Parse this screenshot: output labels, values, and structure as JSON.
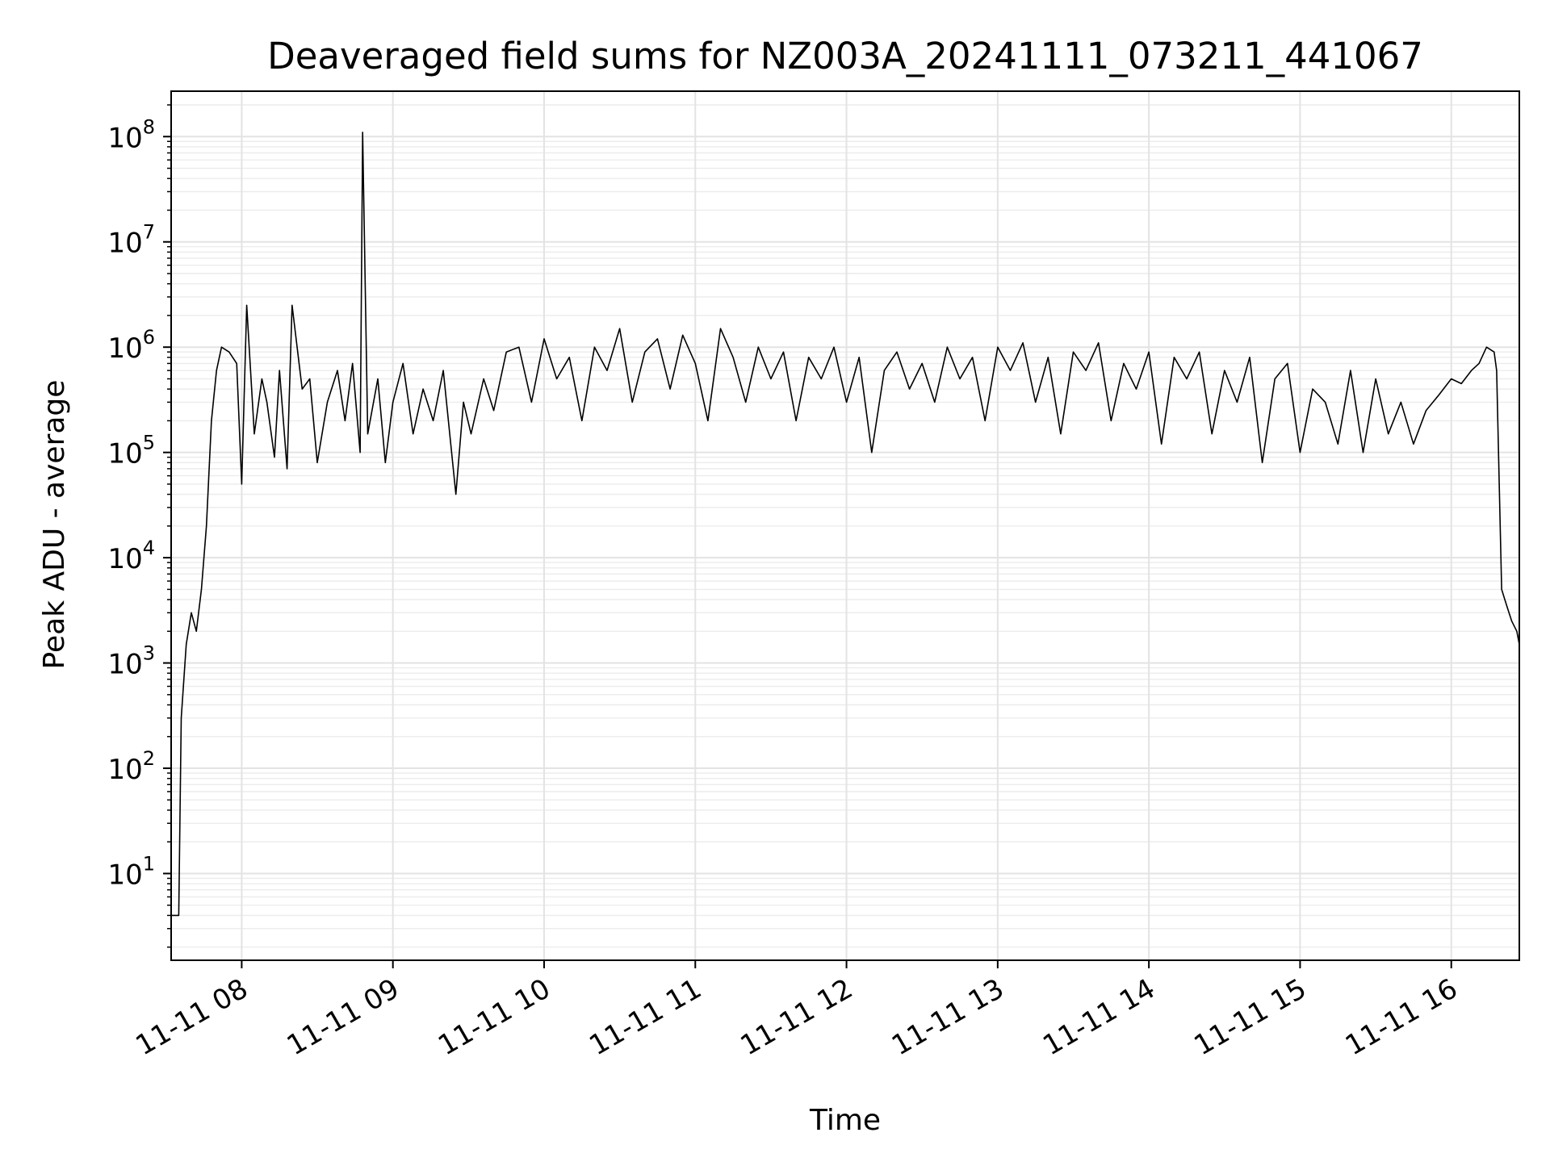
{
  "chart_data": {
    "type": "line",
    "title": "Deaveraged field sums for NZ003A_20241111_073211_441067",
    "xlabel": "Time",
    "ylabel": "Peak ADU - average",
    "yscale": "log",
    "xlim": [
      "11-11 07:32",
      "11-11 16:27"
    ],
    "ylim": [
      1.5,
      270000000.0
    ],
    "grid": true,
    "line_color": "#000000",
    "x_ticks": [
      "11-11 08",
      "11-11 09",
      "11-11 10",
      "11-11 11",
      "11-11 12",
      "11-11 13",
      "11-11 14",
      "11-11 15",
      "11-11 16"
    ],
    "y_ticks": [
      {
        "base": "10",
        "exp": "1",
        "value": 10
      },
      {
        "base": "10",
        "exp": "2",
        "value": 100
      },
      {
        "base": "10",
        "exp": "3",
        "value": 1000
      },
      {
        "base": "10",
        "exp": "4",
        "value": 10000
      },
      {
        "base": "10",
        "exp": "5",
        "value": 100000
      },
      {
        "base": "10",
        "exp": "6",
        "value": 1000000
      },
      {
        "base": "10",
        "exp": "7",
        "value": 10000000
      },
      {
        "base": "10",
        "exp": "8",
        "value": 100000000
      }
    ],
    "series": [
      {
        "x": [
          "11-11 07:32",
          "11-11 07:34",
          "11-11 07:35",
          "11-11 07:36",
          "11-11 07:38",
          "11-11 07:40",
          "11-11 07:42",
          "11-11 07:44",
          "11-11 07:46",
          "11-11 07:48",
          "11-11 07:50",
          "11-11 07:52",
          "11-11 07:55",
          "11-11 07:58",
          "11-11 08:00",
          "11-11 08:02",
          "11-11 08:05",
          "11-11 08:08",
          "11-11 08:10",
          "11-11 08:13",
          "11-11 08:15",
          "11-11 08:18",
          "11-11 08:20",
          "11-11 08:24",
          "11-11 08:27",
          "11-11 08:30",
          "11-11 08:34",
          "11-11 08:38",
          "11-11 08:41",
          "11-11 08:44",
          "11-11 08:47",
          "11-11 08:48",
          "11-11 08:50",
          "11-11 08:54",
          "11-11 08:57",
          "11-11 09:00",
          "11-11 09:04",
          "11-11 09:08",
          "11-11 09:12",
          "11-11 09:16",
          "11-11 09:20",
          "11-11 09:25",
          "11-11 09:28",
          "11-11 09:31",
          "11-11 09:36",
          "11-11 09:40",
          "11-11 09:45",
          "11-11 09:50",
          "11-11 09:55",
          "11-11 10:00",
          "11-11 10:05",
          "11-11 10:10",
          "11-11 10:15",
          "11-11 10:20",
          "11-11 10:25",
          "11-11 10:30",
          "11-11 10:35",
          "11-11 10:40",
          "11-11 10:45",
          "11-11 10:50",
          "11-11 10:55",
          "11-11 11:00",
          "11-11 11:05",
          "11-11 11:10",
          "11-11 11:15",
          "11-11 11:20",
          "11-11 11:25",
          "11-11 11:30",
          "11-11 11:35",
          "11-11 11:40",
          "11-11 11:45",
          "11-11 11:50",
          "11-11 11:55",
          "11-11 12:00",
          "11-11 12:05",
          "11-11 12:10",
          "11-11 12:15",
          "11-11 12:20",
          "11-11 12:25",
          "11-11 12:30",
          "11-11 12:35",
          "11-11 12:40",
          "11-11 12:45",
          "11-11 12:50",
          "11-11 12:55",
          "11-11 13:00",
          "11-11 13:05",
          "11-11 13:10",
          "11-11 13:15",
          "11-11 13:20",
          "11-11 13:25",
          "11-11 13:30",
          "11-11 13:35",
          "11-11 13:40",
          "11-11 13:45",
          "11-11 13:50",
          "11-11 13:55",
          "11-11 14:00",
          "11-11 14:05",
          "11-11 14:10",
          "11-11 14:15",
          "11-11 14:20",
          "11-11 14:25",
          "11-11 14:30",
          "11-11 14:35",
          "11-11 14:40",
          "11-11 14:45",
          "11-11 14:50",
          "11-11 14:55",
          "11-11 15:00",
          "11-11 15:05",
          "11-11 15:10",
          "11-11 15:15",
          "11-11 15:20",
          "11-11 15:25",
          "11-11 15:30",
          "11-11 15:35",
          "11-11 15:40",
          "11-11 15:45",
          "11-11 15:50",
          "11-11 15:55",
          "11-11 16:00",
          "11-11 16:04",
          "11-11 16:08",
          "11-11 16:11",
          "11-11 16:14",
          "11-11 16:17",
          "11-11 16:18",
          "11-11 16:20",
          "11-11 16:22",
          "11-11 16:24",
          "11-11 16:26",
          "11-11 16:27"
        ],
        "y": [
          4,
          4,
          4,
          300,
          1500,
          3000,
          2000,
          5000,
          20000,
          200000,
          600000,
          1000000,
          900000,
          700000,
          50000,
          2500000,
          150000,
          500000,
          300000,
          90000,
          600000,
          70000,
          2500000,
          400000,
          500000,
          80000,
          300000,
          600000,
          200000,
          700000,
          100000,
          110000000,
          150000,
          500000,
          80000,
          300000,
          700000,
          150000,
          400000,
          200000,
          600000,
          40000,
          300000,
          150000,
          500000,
          250000,
          900000,
          1000000,
          300000,
          1200000,
          500000,
          800000,
          200000,
          1000000,
          600000,
          1500000,
          300000,
          900000,
          1200000,
          400000,
          1300000,
          700000,
          200000,
          1500000,
          800000,
          300000,
          1000000,
          500000,
          900000,
          200000,
          800000,
          500000,
          1000000,
          300000,
          800000,
          100000,
          600000,
          900000,
          400000,
          700000,
          300000,
          1000000,
          500000,
          800000,
          200000,
          1000000,
          600000,
          1100000,
          300000,
          800000,
          150000,
          900000,
          600000,
          1100000,
          200000,
          700000,
          400000,
          900000,
          120000,
          800000,
          500000,
          900000,
          150000,
          600000,
          300000,
          800000,
          80000,
          500000,
          700000,
          100000,
          400000,
          300000,
          120000,
          600000,
          100000,
          500000,
          150000,
          300000,
          120000,
          250000,
          350000,
          500000,
          450000,
          600000,
          700000,
          1000000,
          900000,
          600000,
          5000,
          3500,
          2500,
          2000,
          1500
        ]
      }
    ]
  }
}
